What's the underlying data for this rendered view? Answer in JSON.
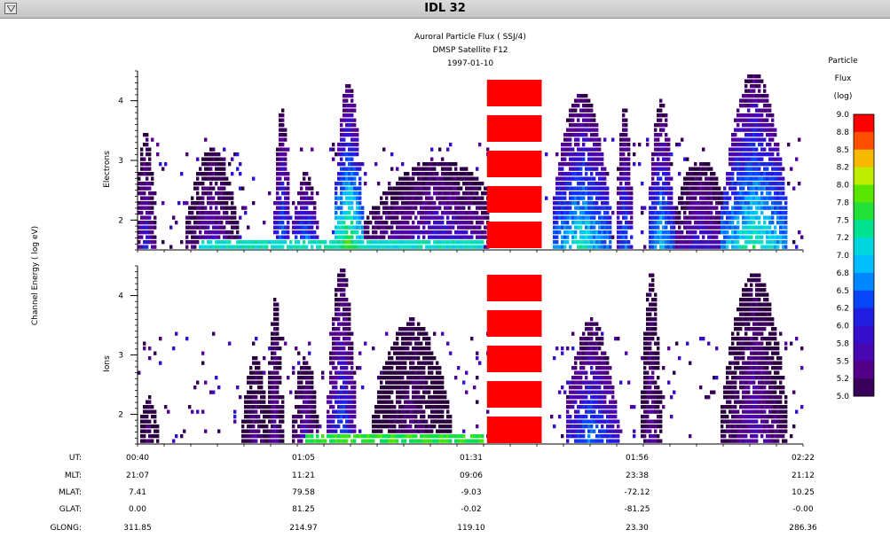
{
  "window": {
    "title": "IDL 32",
    "menu_icon": "triangle-down-icon"
  },
  "chart_data": {
    "type": "heatmap",
    "title": "Auroral Particle Flux ( SSJ/4)",
    "subtitle": "DMSP Satellite F12",
    "date": "1997-01-10",
    "ylabel": "Channel Energy ( log eV)",
    "ylim": [
      1.5,
      4.5
    ],
    "yticks": [
      2,
      3,
      4
    ],
    "panels": [
      {
        "name": "Electrons",
        "bursts": [
          {
            "x": 0.01,
            "w": 0.015,
            "top": 3.5,
            "peak": 6.2
          },
          {
            "x": 0.11,
            "w": 0.04,
            "top": 3.2,
            "peak": 6.0
          },
          {
            "x": 0.215,
            "w": 0.012,
            "top": 3.9,
            "peak": 6.8
          },
          {
            "x": 0.25,
            "w": 0.02,
            "top": 2.8,
            "peak": 7.0
          },
          {
            "x": 0.315,
            "w": 0.022,
            "top": 4.3,
            "peak": 8.0
          },
          {
            "x": 0.45,
            "w": 0.12,
            "top": 3.0,
            "peak": 6.2
          },
          {
            "x": 0.665,
            "w": 0.045,
            "top": 4.15,
            "peak": 7.4
          },
          {
            "x": 0.73,
            "w": 0.012,
            "top": 3.9,
            "peak": 6.8
          },
          {
            "x": 0.785,
            "w": 0.02,
            "top": 4.0,
            "peak": 7.2
          },
          {
            "x": 0.845,
            "w": 0.05,
            "top": 3.0,
            "peak": 6.2
          },
          {
            "x": 0.925,
            "w": 0.05,
            "top": 4.5,
            "peak": 7.6
          }
        ],
        "base_band": {
          "from": 0.09,
          "to": 0.52,
          "level": 7.3
        },
        "data_gap": {
          "from": 0.525,
          "to": 0.61
        }
      },
      {
        "name": "Ions",
        "bursts": [
          {
            "x": 0.015,
            "w": 0.015,
            "top": 2.3,
            "peak": 5.5
          },
          {
            "x": 0.175,
            "w": 0.02,
            "top": 3.0,
            "peak": 5.6
          },
          {
            "x": 0.205,
            "w": 0.012,
            "top": 4.0,
            "peak": 5.8
          },
          {
            "x": 0.25,
            "w": 0.02,
            "top": 3.0,
            "peak": 6.0
          },
          {
            "x": 0.305,
            "w": 0.022,
            "top": 4.5,
            "peak": 6.6
          },
          {
            "x": 0.41,
            "w": 0.06,
            "top": 3.6,
            "peak": 5.5
          },
          {
            "x": 0.68,
            "w": 0.04,
            "top": 3.6,
            "peak": 6.8
          },
          {
            "x": 0.77,
            "w": 0.015,
            "top": 4.4,
            "peak": 5.8
          },
          {
            "x": 0.925,
            "w": 0.05,
            "top": 4.4,
            "peak": 5.9
          }
        ],
        "base_band": {
          "from": 0.25,
          "to": 0.52,
          "level": 7.8
        },
        "data_gap": {
          "from": 0.525,
          "to": 0.61
        }
      }
    ],
    "colorbar": {
      "title_lines": [
        "Particle",
        "Flux",
        "(log)"
      ],
      "labels": [
        "9.0",
        "8.8",
        "8.5",
        "8.2",
        "8.0",
        "7.8",
        "7.5",
        "7.2",
        "7.0",
        "6.8",
        "6.5",
        "6.2",
        "6.0",
        "5.8",
        "5.5",
        "5.2",
        "5.0"
      ],
      "range": [
        5.0,
        9.0
      ]
    },
    "ephemeris": {
      "row_labels": [
        "UT:",
        "MLT:",
        "MLAT:",
        "GLAT:",
        "GLONG:"
      ],
      "columns": [
        [
          "00:40",
          "21:07",
          "7.41",
          "0.00",
          "311.85"
        ],
        [
          "01:05",
          "11:21",
          "79.58",
          "81.25",
          "214.97"
        ],
        [
          "01:31",
          "09:06",
          "-9.03",
          "-0.02",
          "119.10"
        ],
        [
          "01:56",
          "23:38",
          "-72.12",
          "-81.25",
          "23.30"
        ],
        [
          "02:22",
          "21:12",
          "10.25",
          "-0.00",
          "286.36"
        ]
      ]
    }
  }
}
